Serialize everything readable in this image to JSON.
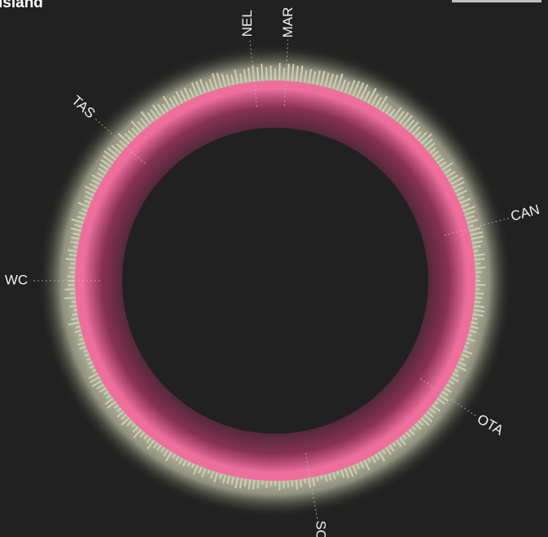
{
  "title": "Island",
  "colors": {
    "background": "#212121",
    "inner_ring": "#ee6f9c",
    "outer_ring": "#cfd1b5",
    "label": "#f2f2f2"
  },
  "chart_data": {
    "type": "radial-bar",
    "title": "Island",
    "series": [
      {
        "color": "#ee6f9c",
        "values_description": "inner magenta band"
      },
      {
        "color": "#cfd1b5",
        "values_description": "outer pale band"
      }
    ],
    "regions": [
      {
        "code": "NEL",
        "angle_deg": -6
      },
      {
        "code": "MAR",
        "angle_deg": 3
      },
      {
        "code": "TAS",
        "angle_deg": -48
      },
      {
        "code": "CAN",
        "angle_deg": 75
      },
      {
        "code": "WC",
        "angle_deg": -90
      },
      {
        "code": "OTA",
        "angle_deg": 124
      },
      {
        "code": "SOU",
        "angle_deg": 170
      }
    ]
  }
}
